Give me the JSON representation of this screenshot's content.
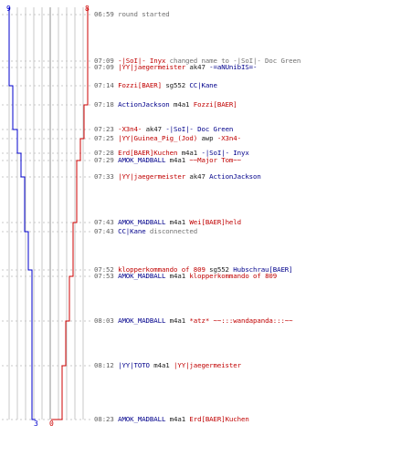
{
  "scores": {
    "blue_top": "9",
    "red_top": "8",
    "blue_bottom": "3",
    "red_bottom": "0",
    "blue_color": "#0000cc",
    "red_color": "#cc0000"
  },
  "events": [
    {
      "time": "06:59",
      "parts": [
        {
          "t": "round started",
          "c": "sys"
        }
      ]
    },
    {
      "time": "07:09",
      "parts": [
        {
          "t": "-|SoI|- Inyx",
          "c": "red"
        },
        {
          "t": " changed name to ",
          "c": "sys"
        },
        {
          "t": "-|SoI|- Doc Green",
          "c": "gray"
        }
      ]
    },
    {
      "time": "07:09",
      "parts": [
        {
          "t": "|YY|jaegermeister",
          "c": "red"
        },
        {
          "t": " ak47 ",
          "c": "black"
        },
        {
          "t": "-=aNUnibIS=-",
          "c": "blue"
        }
      ]
    },
    {
      "time": "07:14",
      "parts": [
        {
          "t": "Fozzi[BAER]",
          "c": "red"
        },
        {
          "t": " sg552 ",
          "c": "black"
        },
        {
          "t": "CC|Kane",
          "c": "blue"
        }
      ]
    },
    {
      "time": "07:18",
      "parts": [
        {
          "t": "ActionJackson",
          "c": "blue"
        },
        {
          "t": " m4a1 ",
          "c": "black"
        },
        {
          "t": "Fozzi[BAER]",
          "c": "red"
        }
      ]
    },
    {
      "time": "07:23",
      "parts": [
        {
          "t": "-X3n4-",
          "c": "red"
        },
        {
          "t": " ak47 ",
          "c": "black"
        },
        {
          "t": "-|SoI|- Doc Green",
          "c": "blue"
        }
      ]
    },
    {
      "time": "07:25",
      "parts": [
        {
          "t": "|YY|Guinea_Pig_(Jod)",
          "c": "red"
        },
        {
          "t": " awp ",
          "c": "black"
        },
        {
          "t": "-X3n4-",
          "c": "red"
        }
      ]
    },
    {
      "time": "07:28",
      "parts": [
        {
          "t": "Erd[BAER]Kuchen",
          "c": "red"
        },
        {
          "t": " m4a1 ",
          "c": "black"
        },
        {
          "t": "-|SoI|- Inyx",
          "c": "blue"
        }
      ]
    },
    {
      "time": "07:29",
      "parts": [
        {
          "t": "AMOK_MADBALL",
          "c": "blue"
        },
        {
          "t": " m4a1 ",
          "c": "black"
        },
        {
          "t": "~~Major Tom~~",
          "c": "red"
        }
      ]
    },
    {
      "time": "07:33",
      "parts": [
        {
          "t": "|YY|jaegermeister",
          "c": "red"
        },
        {
          "t": " ak47 ",
          "c": "black"
        },
        {
          "t": "ActionJackson",
          "c": "blue"
        }
      ]
    },
    {
      "time": "07:43",
      "parts": [
        {
          "t": "AMOK_MADBALL",
          "c": "blue"
        },
        {
          "t": " m4a1 ",
          "c": "black"
        },
        {
          "t": "Wei[BAER]held",
          "c": "red"
        }
      ]
    },
    {
      "time": "07:43",
      "parts": [
        {
          "t": "CC|Kane",
          "c": "blue"
        },
        {
          "t": " disconnected",
          "c": "sys"
        }
      ]
    },
    {
      "time": "07:52",
      "parts": [
        {
          "t": "klopperkommando of 809",
          "c": "red"
        },
        {
          "t": " sg552 ",
          "c": "black"
        },
        {
          "t": "Hubschrau[BAER]",
          "c": "blue"
        }
      ]
    },
    {
      "time": "07:53",
      "parts": [
        {
          "t": "AMOK_MADBALL",
          "c": "blue"
        },
        {
          "t": " m4a1 ",
          "c": "black"
        },
        {
          "t": "klopperkommando of 809",
          "c": "red"
        }
      ]
    },
    {
      "time": "08:03",
      "parts": [
        {
          "t": "AMOK_MADBALL",
          "c": "blue"
        },
        {
          "t": " m4a1 ",
          "c": "black"
        },
        {
          "t": "*atz* ~~:::wandapanda:::~~",
          "c": "red"
        }
      ]
    },
    {
      "time": "08:12",
      "parts": [
        {
          "t": "|YY|TOTO",
          "c": "blue"
        },
        {
          "t": " m4a1 ",
          "c": "black"
        },
        {
          "t": "|YY|jaegermeister",
          "c": "red"
        }
      ]
    },
    {
      "time": "08:23",
      "parts": [
        {
          "t": "AMOK_MADBALL",
          "c": "blue"
        },
        {
          "t": " m4a1 ",
          "c": "black"
        },
        {
          "t": "Erd[BAER]Kuchen",
          "c": "red"
        }
      ]
    }
  ]
}
